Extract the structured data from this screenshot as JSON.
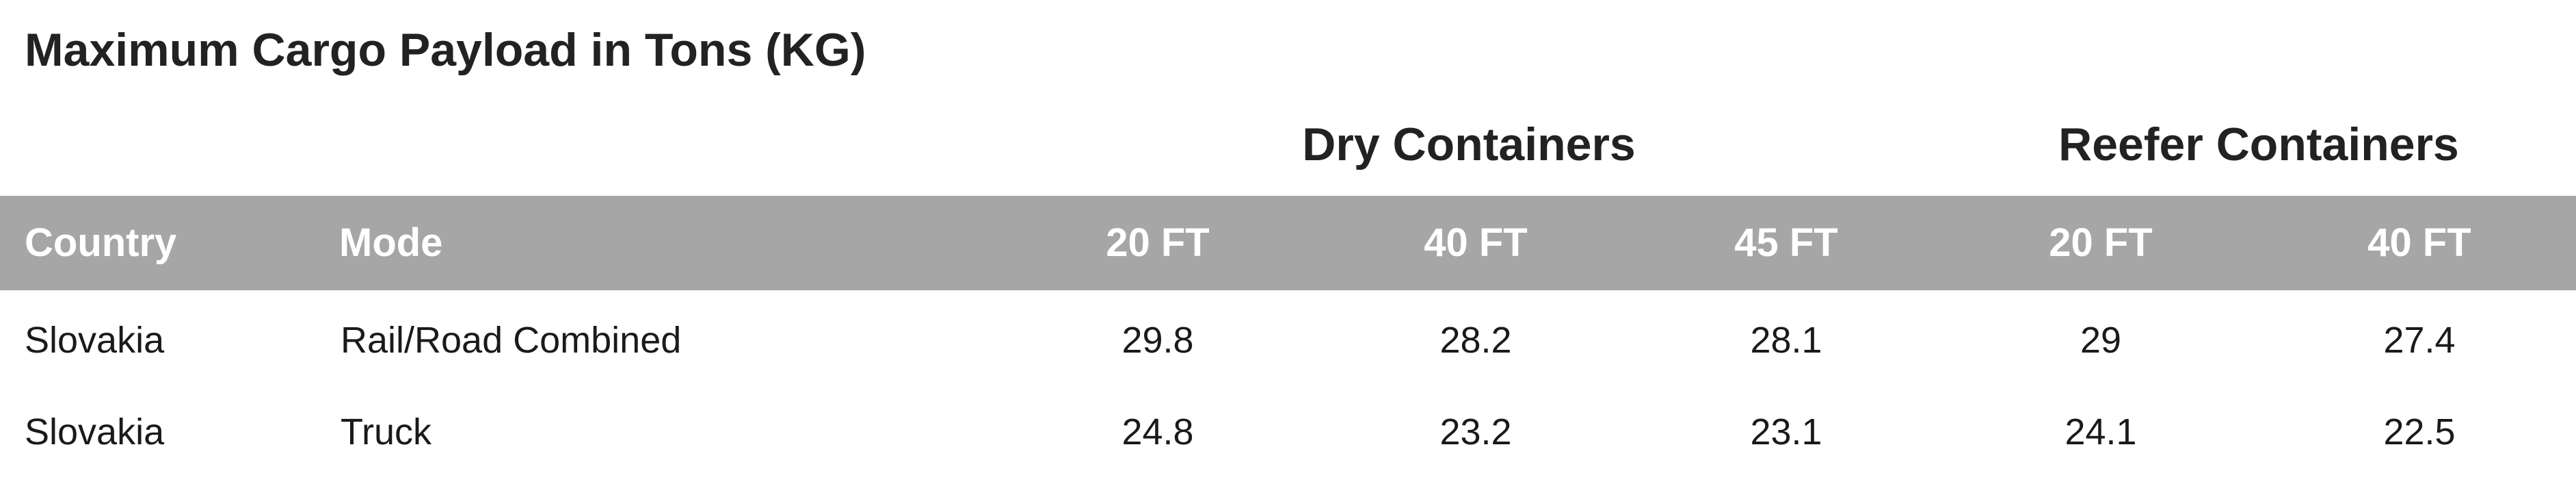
{
  "title": "Maximum Cargo Payload in Tons (KG)",
  "groups": {
    "dry": "Dry Containers",
    "reefer": "Reefer Containers"
  },
  "headers": {
    "country": "Country",
    "mode": "Mode",
    "dry_20": "20 FT",
    "dry_40": "40 FT",
    "dry_45": "45 FT",
    "reefer_20": "20 FT",
    "reefer_40": "40 FT"
  },
  "rows": [
    {
      "country": "Slovakia",
      "mode": "Rail/Road Combined",
      "dry_20": "29.8",
      "dry_40": "28.2",
      "dry_45": "28.1",
      "reefer_20": "29",
      "reefer_40": "27.4"
    },
    {
      "country": "Slovakia",
      "mode": "Truck",
      "dry_20": "24.8",
      "dry_40": "23.2",
      "dry_45": "23.1",
      "reefer_20": "24.1",
      "reefer_40": "22.5"
    }
  ],
  "colors": {
    "header_band": "#a6a6a6",
    "header_text": "#ffffff",
    "body_text": "#1a1a1a",
    "title_text": "#222222"
  }
}
